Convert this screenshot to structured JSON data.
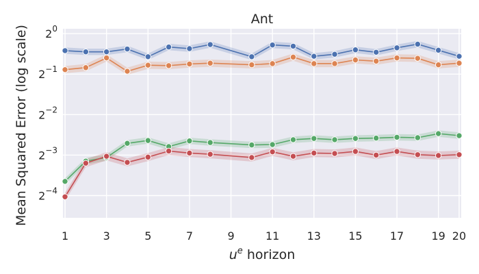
{
  "chart_data": {
    "type": "line",
    "title": "Ant",
    "xlabel_base": "u",
    "xlabel_sup": "e",
    "xlabel_rest": " horizon",
    "ylabel": "Mean Squared Error (log scale)",
    "xlim": [
      0.9,
      20.1
    ],
    "ylim_log2": [
      -4.55,
      0.12
    ],
    "x_ticks": [
      1,
      3,
      5,
      7,
      9,
      11,
      13,
      15,
      17,
      19,
      20
    ],
    "y_ticks_base": "2",
    "y_ticks": [
      {
        "exp": 0,
        "label": "0"
      },
      {
        "exp": -1,
        "label": "−1"
      },
      {
        "exp": -2,
        "label": "−2"
      },
      {
        "exp": -3,
        "label": "−3"
      },
      {
        "exp": -4,
        "label": "−4"
      }
    ],
    "x": [
      1,
      2,
      3,
      4,
      5,
      6,
      7,
      8,
      10,
      11,
      12,
      13,
      14,
      15,
      16,
      17,
      18,
      19,
      20
    ],
    "series": [
      {
        "name": "blue",
        "color": "#4c72b0",
        "values_log2": [
          -0.42,
          -0.45,
          -0.45,
          -0.38,
          -0.57,
          -0.33,
          -0.37,
          -0.27,
          -0.57,
          -0.28,
          -0.31,
          -0.56,
          -0.51,
          -0.4,
          -0.46,
          -0.35,
          -0.26,
          -0.41,
          -0.56
        ],
        "band_log2": 0.08
      },
      {
        "name": "orange",
        "color": "#dd8452",
        "values_log2": [
          -0.89,
          -0.84,
          -0.6,
          -0.93,
          -0.78,
          -0.79,
          -0.75,
          -0.73,
          -0.77,
          -0.74,
          -0.58,
          -0.74,
          -0.74,
          -0.65,
          -0.68,
          -0.6,
          -0.61,
          -0.77,
          -0.73
        ],
        "band_log2": 0.09
      },
      {
        "name": "green",
        "color": "#55a868",
        "values_log2": [
          -3.65,
          -3.15,
          -3.06,
          -2.71,
          -2.64,
          -2.79,
          -2.65,
          -2.69,
          -2.75,
          -2.74,
          -2.62,
          -2.59,
          -2.62,
          -2.59,
          -2.58,
          -2.56,
          -2.57,
          -2.47,
          -2.52
        ],
        "band_log2": 0.08
      },
      {
        "name": "red",
        "color": "#c44e52",
        "values_log2": [
          -4.03,
          -3.2,
          -3.03,
          -3.18,
          -3.05,
          -2.9,
          -2.95,
          -2.98,
          -3.06,
          -2.92,
          -3.03,
          -2.95,
          -2.96,
          -2.91,
          -3.0,
          -2.91,
          -2.99,
          -3.01,
          -2.99
        ],
        "band_log2": 0.1
      }
    ]
  }
}
